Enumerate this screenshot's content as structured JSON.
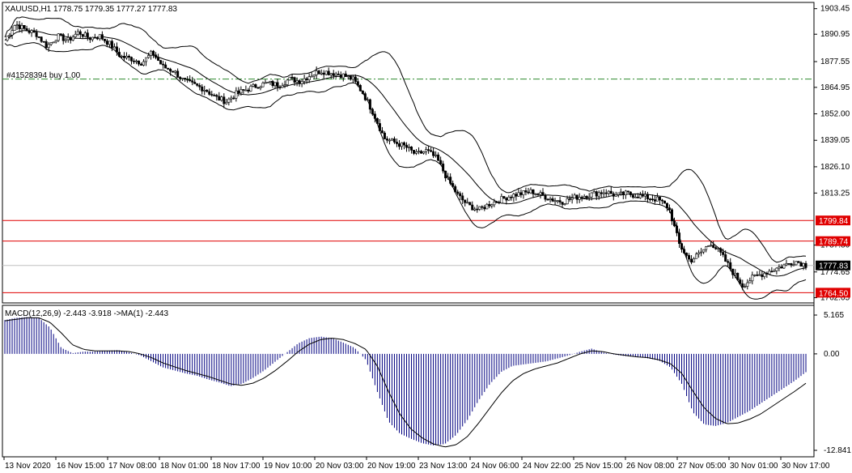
{
  "header": {
    "symbol_line": "XAUUSD,H1  1778.75 1779.35 1777.27 1777.83",
    "order_line": "#41528394 buy 1.00",
    "macd_line": "MACD(12,26,9) -2.443 -3.918  ->MA(1) -2.443"
  },
  "colors": {
    "background": "#ffffff",
    "candle": "#000000",
    "band": "#000000",
    "order_line": "#2e8b2e",
    "level_line": "#e00000",
    "histogram": "#000080",
    "signal": "#000000",
    "price_tag": "#e00000"
  },
  "chart_data": [
    {
      "type": "candlestick",
      "title": "XAUUSD,H1",
      "ohlc_last": {
        "open": 1778.75,
        "high": 1779.35,
        "low": 1777.27,
        "close": 1777.83
      },
      "y_ticks": [
        "1903.45",
        "1890.95",
        "1877.55",
        "1864.95",
        "1852.00",
        "1839.05",
        "1826.10",
        "1813.25",
        "1787.80",
        "1774.65",
        "1762.05"
      ],
      "ylim": [
        1759.5,
        1906.5
      ],
      "x_ticks": [
        "13 Nov 2020",
        "16 Nov 15:00",
        "17 Nov 08:00",
        "18 Nov 01:00",
        "18 Nov 17:00",
        "19 Nov 10:00",
        "20 Nov 03:00",
        "20 Nov 19:00",
        "23 Nov 13:00",
        "24 Nov 06:00",
        "24 Nov 22:00",
        "25 Nov 15:00",
        "26 Nov 08:00",
        "27 Nov 05:00",
        "30 Nov 01:00",
        "30 Nov 17:00"
      ],
      "indicator": "Bollinger Bands",
      "close_path": [
        1888,
        1896,
        1893,
        1891,
        1885,
        1890,
        1888,
        1892,
        1889,
        1890,
        1886,
        1880,
        1879,
        1877,
        1882,
        1875,
        1873,
        1868,
        1866,
        1864,
        1860,
        1858,
        1862,
        1864,
        1866,
        1867,
        1866,
        1869,
        1868,
        1871,
        1873,
        1872,
        1871,
        1869,
        1862,
        1852,
        1840,
        1838,
        1836,
        1832,
        1834,
        1830,
        1820,
        1812,
        1807,
        1805,
        1808,
        1810,
        1812,
        1813,
        1814,
        1812,
        1810,
        1809,
        1811,
        1812,
        1813,
        1814,
        1812,
        1813,
        1812,
        1811,
        1810,
        1806,
        1788,
        1780,
        1784,
        1789,
        1783,
        1775,
        1768,
        1772,
        1774,
        1776,
        1778,
        1780,
        1778
      ],
      "horizontal_levels": [
        {
          "label": "1799.84",
          "value": 1799.84
        },
        {
          "label": "1789.74",
          "value": 1789.74
        },
        {
          "label": "1764.50",
          "value": 1764.5
        }
      ],
      "order_level": 1869.0,
      "current_price": "1777.83",
      "current_price_value": 1777.83
    },
    {
      "type": "bar",
      "title": "MACD(12,26,9)",
      "values_last": {
        "macd": -2.443,
        "signal": -3.918,
        "ma": -2.443
      },
      "y_ticks": [
        "5.165",
        "0.00",
        "-12.841"
      ],
      "ylim": [
        -12.841,
        5.165
      ],
      "macd_path": [
        4.5,
        4.8,
        4.9,
        4.8,
        3.5,
        0.8,
        0.1,
        0.3,
        0.3,
        0.4,
        0.5,
        0.2,
        -0.2,
        -1.0,
        -1.8,
        -2.2,
        -2.6,
        -2.9,
        -3.4,
        -3.8,
        -4.3,
        -4.0,
        -3.2,
        -2.2,
        -1.0,
        0.2,
        1.4,
        2.1,
        2.3,
        2.1,
        1.5,
        0.8,
        -0.8,
        -5.0,
        -9.0,
        -10.6,
        -11.3,
        -11.9,
        -12.2,
        -12.0,
        -10.8,
        -8.8,
        -6.2,
        -4.0,
        -2.4,
        -1.6,
        -1.4,
        -1.2,
        -1.0,
        -0.6,
        -0.2,
        0.3,
        0.7,
        0.2,
        -0.1,
        -0.3,
        -0.4,
        -0.6,
        -0.9,
        -1.8,
        -4.0,
        -7.8,
        -9.4,
        -9.6,
        -9.2,
        -8.4,
        -7.6,
        -6.6,
        -5.6,
        -4.6,
        -3.6,
        -2.443
      ],
      "signal_path": [
        4.4,
        4.6,
        4.8,
        4.8,
        4.2,
        2.8,
        1.2,
        0.6,
        0.4,
        0.4,
        0.4,
        0.3,
        0.0,
        -0.5,
        -1.2,
        -1.7,
        -2.2,
        -2.6,
        -3.0,
        -3.5,
        -4.0,
        -4.2,
        -3.9,
        -3.2,
        -2.2,
        -1.0,
        0.3,
        1.3,
        1.9,
        2.1,
        1.9,
        1.4,
        0.6,
        -1.6,
        -5.0,
        -8.0,
        -10.0,
        -11.2,
        -12.0,
        -12.4,
        -12.1,
        -11.0,
        -9.2,
        -7.2,
        -5.2,
        -3.6,
        -2.6,
        -2.0,
        -1.6,
        -1.2,
        -0.6,
        0.0,
        0.4,
        0.3,
        0.0,
        -0.2,
        -0.4,
        -0.5,
        -0.8,
        -1.3,
        -2.6,
        -5.0,
        -7.2,
        -8.6,
        -9.3,
        -9.2,
        -8.7,
        -8.0,
        -7.0,
        -6.0,
        -5.0,
        -3.918
      ]
    }
  ]
}
